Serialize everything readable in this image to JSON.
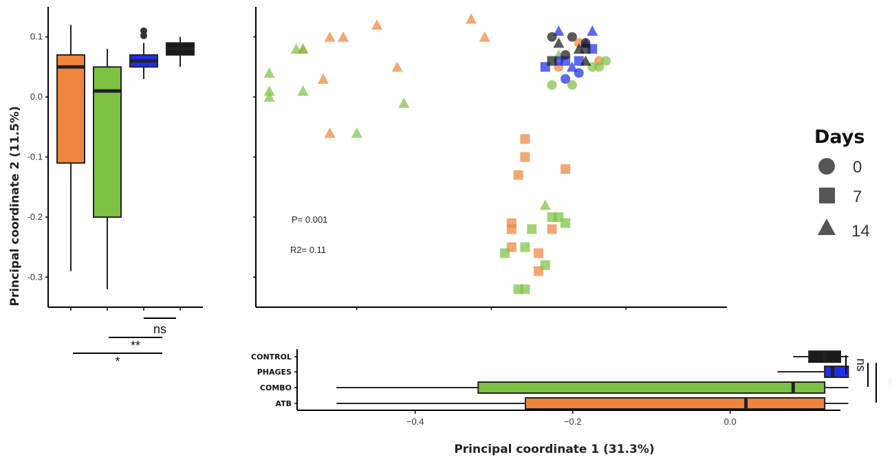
{
  "colors": {
    "atb": "#F0853F",
    "combo": "#7DC242",
    "phages": "#1F2EE8",
    "control": "#1A1A1A"
  },
  "chart_data": [
    {
      "type": "scatter",
      "title": "",
      "xlabel": "Principal coordinate 1 (31.3%)",
      "ylabel": "Principal coordinate 2 (11.5%)",
      "xlim": [
        -0.55,
        0.15
      ],
      "ylim": [
        -0.35,
        0.15
      ],
      "x_ticks": [
        "-0.4",
        "-0.2",
        "0.0"
      ],
      "y_ticks": [
        "0.1",
        "0.0",
        "-0.1",
        "-0.2",
        "-0.3"
      ],
      "annotations": [
        "P= 0.001",
        "R2= 0.11"
      ],
      "legend": {
        "title": "Days",
        "position": "right",
        "entries": [
          {
            "label": "0",
            "shape": "circle"
          },
          {
            "label": "7",
            "shape": "square"
          },
          {
            "label": "14",
            "shape": "triangle"
          }
        ]
      },
      "series": [
        {
          "group": "ATB",
          "points": [
            {
              "x": -0.48,
              "y": 0.08,
              "day": 14
            },
            {
              "x": -0.44,
              "y": 0.1,
              "day": 14
            },
            {
              "x": -0.42,
              "y": 0.1,
              "day": 14
            },
            {
              "x": -0.37,
              "y": 0.12,
              "day": 14
            },
            {
              "x": -0.34,
              "y": 0.05,
              "day": 14
            },
            {
              "x": -0.45,
              "y": 0.03,
              "day": 14
            },
            {
              "x": -0.44,
              "y": -0.06,
              "day": 14
            },
            {
              "x": -0.23,
              "y": 0.13,
              "day": 14
            },
            {
              "x": -0.21,
              "y": 0.1,
              "day": 14
            },
            {
              "x": -0.15,
              "y": -0.07,
              "day": 7
            },
            {
              "x": -0.15,
              "y": -0.1,
              "day": 7
            },
            {
              "x": -0.16,
              "y": -0.13,
              "day": 7
            },
            {
              "x": -0.09,
              "y": -0.12,
              "day": 7
            },
            {
              "x": -0.17,
              "y": -0.21,
              "day": 7
            },
            {
              "x": -0.17,
              "y": -0.22,
              "day": 7
            },
            {
              "x": -0.17,
              "y": -0.25,
              "day": 7
            },
            {
              "x": -0.11,
              "y": -0.22,
              "day": 7
            },
            {
              "x": -0.13,
              "y": -0.26,
              "day": 7
            },
            {
              "x": -0.13,
              "y": -0.29,
              "day": 7
            },
            {
              "x": -0.1,
              "y": 0.05,
              "day": 0
            },
            {
              "x": -0.07,
              "y": 0.09,
              "day": 0
            },
            {
              "x": -0.04,
              "y": 0.06,
              "day": 0
            }
          ]
        },
        {
          "group": "COMBO",
          "points": [
            {
              "x": -0.53,
              "y": 0.04,
              "day": 14
            },
            {
              "x": -0.53,
              "y": 0.01,
              "day": 14
            },
            {
              "x": -0.53,
              "y": 0.0,
              "day": 14
            },
            {
              "x": -0.49,
              "y": 0.08,
              "day": 14
            },
            {
              "x": -0.48,
              "y": 0.08,
              "day": 14
            },
            {
              "x": -0.48,
              "y": 0.01,
              "day": 14
            },
            {
              "x": -0.4,
              "y": -0.06,
              "day": 14
            },
            {
              "x": -0.33,
              "y": -0.01,
              "day": 14
            },
            {
              "x": -0.12,
              "y": -0.18,
              "day": 14
            },
            {
              "x": -0.1,
              "y": 0.07,
              "day": 14
            },
            {
              "x": -0.11,
              "y": -0.2,
              "day": 7
            },
            {
              "x": -0.1,
              "y": -0.2,
              "day": 7
            },
            {
              "x": -0.09,
              "y": -0.21,
              "day": 7
            },
            {
              "x": -0.14,
              "y": -0.22,
              "day": 7
            },
            {
              "x": -0.15,
              "y": -0.25,
              "day": 7
            },
            {
              "x": -0.18,
              "y": -0.26,
              "day": 7
            },
            {
              "x": -0.12,
              "y": -0.28,
              "day": 7
            },
            {
              "x": -0.16,
              "y": -0.32,
              "day": 7
            },
            {
              "x": -0.15,
              "y": -0.32,
              "day": 7
            },
            {
              "x": -0.11,
              "y": 0.02,
              "day": 0
            },
            {
              "x": -0.08,
              "y": 0.02,
              "day": 0
            },
            {
              "x": -0.04,
              "y": 0.05,
              "day": 0
            },
            {
              "x": -0.03,
              "y": 0.06,
              "day": 0
            },
            {
              "x": -0.05,
              "y": 0.05,
              "day": 0
            }
          ]
        },
        {
          "group": "PHAGES",
          "points": [
            {
              "x": -0.1,
              "y": 0.11,
              "day": 14
            },
            {
              "x": -0.05,
              "y": 0.11,
              "day": 14
            },
            {
              "x": -0.06,
              "y": 0.09,
              "day": 14
            },
            {
              "x": -0.08,
              "y": 0.05,
              "day": 14
            },
            {
              "x": -0.12,
              "y": 0.05,
              "day": 7
            },
            {
              "x": -0.05,
              "y": 0.08,
              "day": 7
            },
            {
              "x": -0.07,
              "y": 0.06,
              "day": 7
            },
            {
              "x": -0.09,
              "y": 0.06,
              "day": 7
            },
            {
              "x": -0.09,
              "y": 0.03,
              "day": 0
            },
            {
              "x": -0.07,
              "y": 0.04,
              "day": 0
            },
            {
              "x": -0.1,
              "y": 0.06,
              "day": 0
            }
          ]
        },
        {
          "group": "CONTROL",
          "points": [
            {
              "x": -0.11,
              "y": 0.1,
              "day": 0
            },
            {
              "x": -0.08,
              "y": 0.1,
              "day": 0
            },
            {
              "x": -0.06,
              "y": 0.09,
              "day": 0
            },
            {
              "x": -0.09,
              "y": 0.07,
              "day": 0
            },
            {
              "x": -0.1,
              "y": 0.09,
              "day": 14
            },
            {
              "x": -0.07,
              "y": 0.08,
              "day": 14
            },
            {
              "x": -0.06,
              "y": 0.06,
              "day": 14
            },
            {
              "x": -0.11,
              "y": 0.06,
              "day": 7
            },
            {
              "x": -0.06,
              "y": 0.08,
              "day": 7
            }
          ]
        }
      ]
    },
    {
      "type": "boxplot",
      "orientation": "vertical",
      "axis": "Principal coordinate 2 (11.5%)",
      "groups": [
        "ATB",
        "COMBO",
        "PHAGES",
        "CONTROL"
      ],
      "boxes": [
        {
          "group": "ATB",
          "min": -0.29,
          "q1": -0.11,
          "median": 0.05,
          "q3": 0.07,
          "max": 0.12,
          "outliers": []
        },
        {
          "group": "COMBO",
          "min": -0.32,
          "q1": -0.2,
          "median": 0.01,
          "q3": 0.05,
          "max": 0.08,
          "outliers": []
        },
        {
          "group": "PHAGES",
          "min": 0.03,
          "q1": 0.05,
          "median": 0.06,
          "q3": 0.07,
          "max": 0.09,
          "outliers": [
            0.11,
            0.11
          ]
        },
        {
          "group": "CONTROL",
          "min": 0.05,
          "q1": 0.07,
          "median": 0.08,
          "q3": 0.09,
          "max": 0.1,
          "outliers": []
        }
      ],
      "significance": [
        {
          "pair": [
            "PHAGES",
            "CONTROL"
          ],
          "label": "ns"
        },
        {
          "pair": [
            "COMBO",
            "PHAGES"
          ],
          "label": "**"
        },
        {
          "pair": [
            "ATB",
            "PHAGES"
          ],
          "label": "*"
        }
      ]
    },
    {
      "type": "boxplot",
      "orientation": "horizontal",
      "axis": "Principal coordinate 1 (31.3%)",
      "groups": [
        "CONTROL",
        "PHAGES",
        "COMBO",
        "ATB"
      ],
      "boxes": [
        {
          "group": "CONTROL",
          "min": 0.08,
          "q1": 0.1,
          "median": 0.12,
          "q3": 0.14,
          "max": 0.15
        },
        {
          "group": "PHAGES",
          "min": 0.06,
          "q1": 0.12,
          "median": 0.13,
          "q3": 0.15,
          "max": 0.15
        },
        {
          "group": "COMBO",
          "min": -0.5,
          "q1": -0.32,
          "median": 0.08,
          "q3": 0.12,
          "max": 0.15
        },
        {
          "group": "ATB",
          "min": -0.5,
          "q1": -0.26,
          "median": 0.02,
          "q3": 0.12,
          "max": 0.15
        }
      ],
      "significance": [
        {
          "pair": [
            "CONTROL",
            "PHAGES"
          ],
          "label": "ns"
        },
        {
          "pair": [
            "PHAGES",
            "COMBO"
          ],
          "label": ""
        },
        {
          "pair": [
            "CONTROL",
            "ATB"
          ],
          "label": "**"
        }
      ]
    }
  ]
}
